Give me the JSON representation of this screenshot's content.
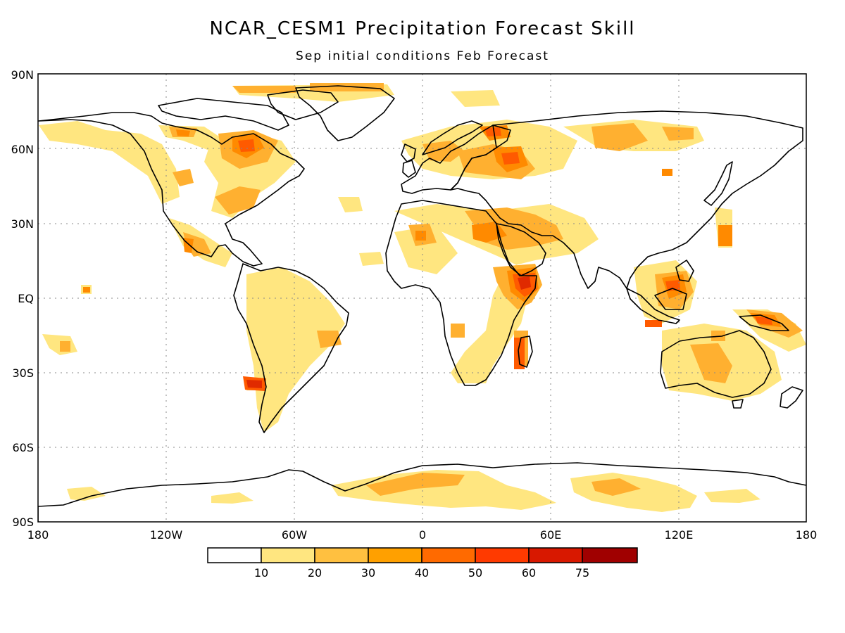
{
  "title": "NCAR_CESM1 Precipitation Forecast Skill",
  "subtitle": "Sep initial conditions  Feb Forecast",
  "map": {
    "projection": "equirectangular",
    "lon_range": [
      -180,
      180
    ],
    "lat_range": [
      -90,
      90
    ],
    "grid": "dotted",
    "lat_labels": [
      "90N",
      "60N",
      "30N",
      "EQ",
      "30S",
      "60S",
      "90S"
    ],
    "lon_labels": [
      "180",
      "120W",
      "60W",
      "0",
      "60E",
      "120E",
      "180"
    ],
    "field_colors": {
      "light": "#ffe680",
      "mid": "#ffb030",
      "orange": "#ff8a00",
      "dark": "#ff5a00",
      "red": "#e02a00"
    }
  },
  "colorbar": {
    "colors": [
      "#ffffff",
      "#ffe680",
      "#ffc040",
      "#ffa000",
      "#ff6a00",
      "#ff3a00",
      "#d81800",
      "#a00000"
    ],
    "tick_labels": [
      "10",
      "20",
      "30",
      "40",
      "50",
      "60",
      "75"
    ]
  }
}
